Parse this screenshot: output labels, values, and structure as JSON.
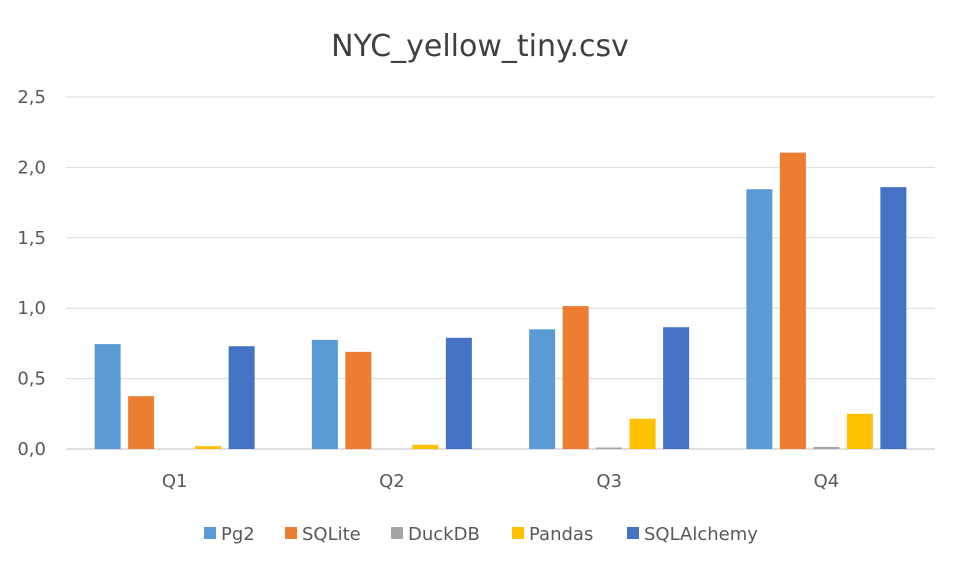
{
  "chart_data": {
    "type": "bar",
    "title": "NYC_yellow_tiny.csv",
    "xlabel": "",
    "ylabel": "",
    "categories": [
      "Q1",
      "Q2",
      "Q3",
      "Q4"
    ],
    "ylim": [
      0,
      2.5
    ],
    "yticks": [
      0,
      0.5,
      1.0,
      1.5,
      2.0,
      2.5
    ],
    "ytick_labels": [
      "0,0",
      "0,5",
      "1,0",
      "1,5",
      "2,0",
      "2,5"
    ],
    "grid": true,
    "legend_position": "bottom",
    "series": [
      {
        "name": "Pg2",
        "color": "#5B9BD5",
        "values": [
          0.745,
          0.775,
          0.85,
          1.845
        ]
      },
      {
        "name": "SQLite",
        "color": "#ED7D31",
        "values": [
          0.375,
          0.69,
          1.015,
          2.105
        ]
      },
      {
        "name": "DuckDB",
        "color": "#A5A5A5",
        "values": [
          0.0,
          0.0,
          0.005,
          0.015
        ]
      },
      {
        "name": "Pandas",
        "color": "#FFC000",
        "values": [
          0.02,
          0.03,
          0.215,
          0.25
        ]
      },
      {
        "name": "SQLAlchemy",
        "color": "#4472C4",
        "values": [
          0.73,
          0.79,
          0.865,
          1.86
        ]
      }
    ]
  }
}
